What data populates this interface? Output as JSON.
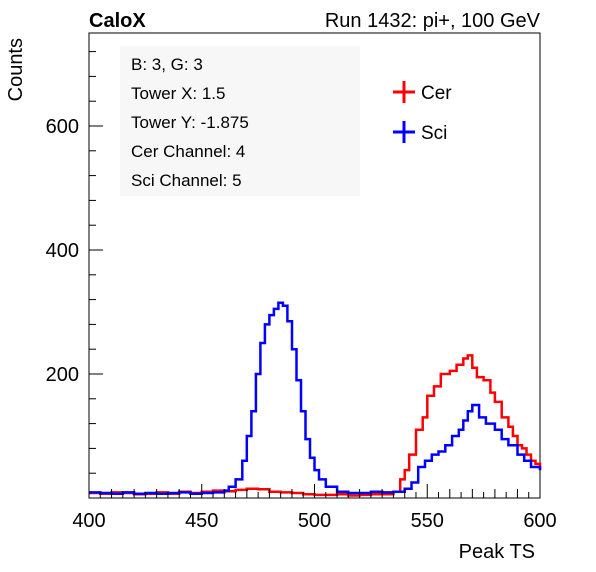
{
  "header": {
    "left": "CaloX",
    "right": "Run 1432: pi+, 100 GeV"
  },
  "info_box": {
    "lines": [
      "B: 3, G: 3",
      "Tower X: 1.5",
      "Tower Y: -1.875",
      "Cer Channel: 4",
      "Sci Channel: 5"
    ]
  },
  "chart_data": {
    "type": "line",
    "xlabel": "Peak TS",
    "ylabel": "Counts",
    "xlim": [
      400,
      600
    ],
    "ylim": [
      0,
      750
    ],
    "x_ticks": [
      400,
      450,
      500,
      550,
      600
    ],
    "y_ticks": [
      200,
      400,
      600
    ],
    "grid": false,
    "legend_position": "top-right",
    "series": [
      {
        "name": "Cer",
        "color": "#ff0000",
        "x": [
          400,
          405,
          410,
          415,
          420,
          425,
          430,
          435,
          440,
          445,
          450,
          455,
          460,
          465,
          470,
          475,
          480,
          485,
          490,
          495,
          500,
          505,
          510,
          515,
          520,
          525,
          530,
          535,
          538,
          540,
          542,
          545,
          548,
          550,
          553,
          556,
          560,
          563,
          566,
          568,
          570,
          572,
          575,
          578,
          580,
          583,
          586,
          588,
          590,
          592,
          594,
          596,
          598,
          600
        ],
        "y": [
          8,
          7,
          9,
          8,
          6,
          7,
          9,
          7,
          10,
          8,
          10,
          12,
          11,
          13,
          15,
          14,
          10,
          9,
          8,
          6,
          5,
          5,
          6,
          4,
          5,
          6,
          6,
          10,
          30,
          45,
          70,
          110,
          130,
          165,
          180,
          200,
          205,
          215,
          225,
          230,
          210,
          195,
          190,
          170,
          155,
          130,
          115,
          100,
          85,
          80,
          70,
          60,
          55,
          45
        ]
      },
      {
        "name": "Sci",
        "color": "#0000ff",
        "x": [
          400,
          405,
          410,
          415,
          420,
          425,
          430,
          435,
          440,
          445,
          450,
          455,
          460,
          462,
          465,
          468,
          470,
          472,
          474,
          476,
          478,
          480,
          482,
          484,
          486,
          488,
          490,
          492,
          494,
          496,
          498,
          500,
          502,
          505,
          510,
          515,
          520,
          525,
          530,
          535,
          540,
          543,
          546,
          549,
          552,
          555,
          558,
          561,
          564,
          566,
          568,
          570,
          573,
          576,
          580,
          583,
          586,
          590,
          593,
          596,
          600
        ],
        "y": [
          9,
          8,
          7,
          9,
          7,
          8,
          7,
          8,
          9,
          7,
          8,
          9,
          12,
          18,
          30,
          60,
          100,
          140,
          200,
          250,
          280,
          295,
          305,
          315,
          310,
          285,
          240,
          190,
          140,
          95,
          65,
          45,
          30,
          18,
          10,
          8,
          8,
          10,
          9,
          10,
          15,
          25,
          50,
          60,
          70,
          75,
          85,
          100,
          110,
          125,
          140,
          150,
          130,
          120,
          110,
          95,
          85,
          70,
          60,
          50,
          45
        ]
      }
    ]
  }
}
